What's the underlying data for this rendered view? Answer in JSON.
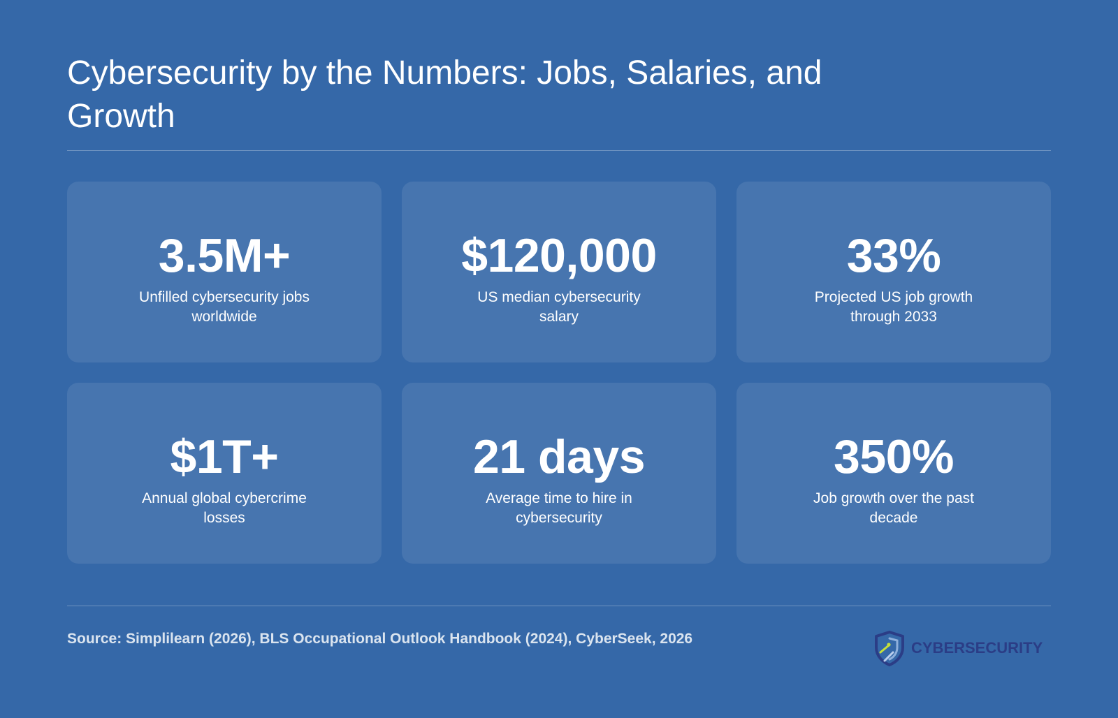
{
  "title": "Cybersecurity by the Numbers: Jobs, Salaries, and Growth",
  "stats": [
    {
      "value": "3.5M+",
      "label": "Unfilled cybersecurity jobs worldwide"
    },
    {
      "value": "$120,000",
      "label": "US median cybersecurity salary"
    },
    {
      "value": "33%",
      "label": "Projected US job growth through 2033"
    },
    {
      "value": "$1T+",
      "label": "Annual global cybercrime losses"
    },
    {
      "value": "21 days",
      "label": "Average time to hire in cybersecurity"
    },
    {
      "value": "350%",
      "label": "Job growth over the past decade"
    }
  ],
  "source": "Source: Simplilearn (2026), BLS Occupational Outlook Handbook (2024), CyberSeek, 2026",
  "logo": {
    "text": "CYBERSECURITY",
    "icon": "shield-icon"
  },
  "colors": {
    "background": "#3568a8",
    "card": "#4577b1",
    "logo_text": "#2b3d86",
    "logo_accent": "#c6e03a"
  }
}
